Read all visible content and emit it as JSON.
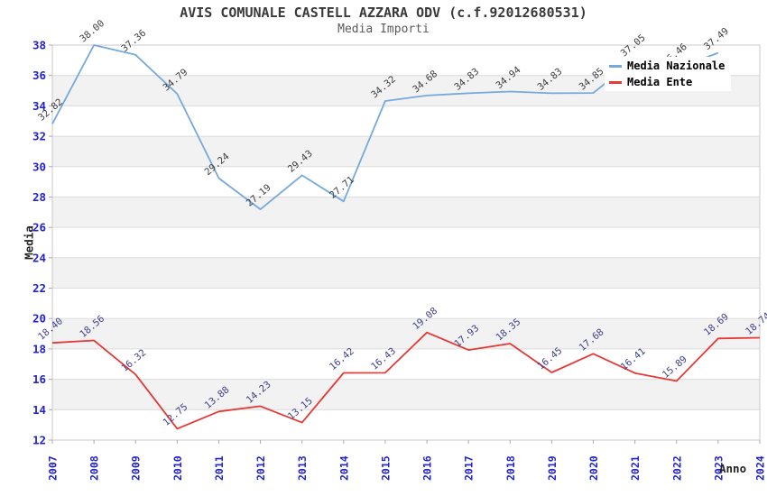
{
  "header": {
    "title": "AVIS COMUNALE CASTELL AZZARA ODV (c.f.92012680531)",
    "subtitle": "Media Importi"
  },
  "axes": {
    "y_title": "Media",
    "x_title": "Anno"
  },
  "colors": {
    "tick_label": "#2323cc",
    "grid_line": "#dcdcdc",
    "band_fill": "#f2f2f2",
    "plot_border": "#c9c9c9",
    "tick_mark": "#aaaaaa",
    "national_line": "#74a9dc",
    "ente_line": "#e53935",
    "national_point_label": "#3c3c3c",
    "ente_point_label": "#3d3d8a"
  },
  "chart_data": {
    "type": "line",
    "title": "AVIS COMUNALE CASTELL AZZARA ODV (c.f.92012680531)",
    "subtitle": "Media Importi",
    "xlabel": "Anno",
    "ylabel": "Media",
    "categories": [
      "2007",
      "2008",
      "2009",
      "2010",
      "2011",
      "2012",
      "2013",
      "2014",
      "2015",
      "2016",
      "2017",
      "2018",
      "2019",
      "2020",
      "2021",
      "2022",
      "2023",
      "2024"
    ],
    "series": [
      {
        "name": "Media Nazionale",
        "color": "#74a9dc",
        "label_color": "#3c3c3c",
        "values": [
          32.82,
          38.0,
          37.36,
          34.79,
          29.24,
          27.19,
          29.43,
          27.71,
          34.32,
          34.68,
          34.83,
          34.94,
          34.83,
          34.85,
          37.05,
          36.46,
          37.49,
          null
        ]
      },
      {
        "name": "Media Ente",
        "color": "#e53935",
        "label_color": "#3d3d8a",
        "values": [
          18.4,
          18.56,
          16.32,
          12.75,
          13.88,
          14.23,
          13.15,
          16.42,
          16.43,
          19.08,
          17.93,
          18.35,
          16.45,
          17.68,
          16.41,
          15.89,
          18.69,
          18.74
        ]
      }
    ],
    "ylim": [
      12,
      38
    ],
    "y_tick_step": 2,
    "grid": "horizontal-bands",
    "point_labels": "value shown at every point with 2 decimals, rotated",
    "legend_position": "top-right-overlapping-plot"
  }
}
